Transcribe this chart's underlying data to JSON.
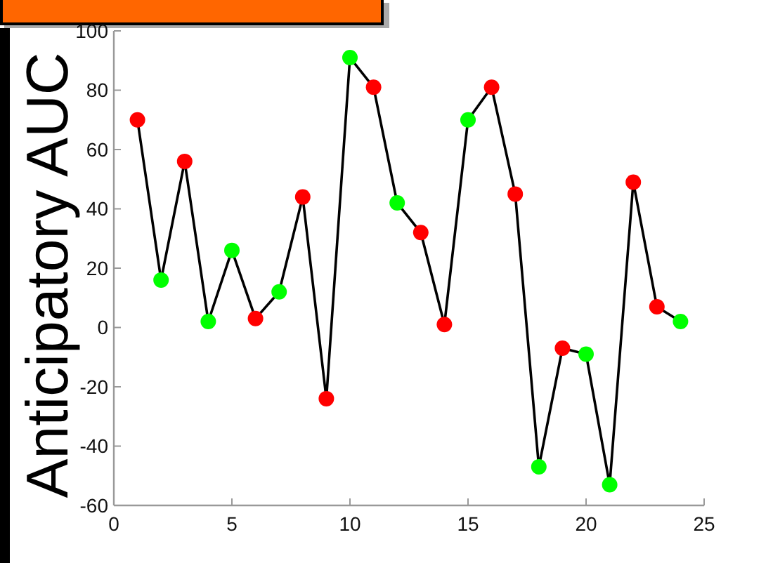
{
  "chart_data": {
    "type": "line",
    "ylabel": "Anticipatory AUC",
    "x": [
      1,
      2,
      3,
      4,
      5,
      6,
      7,
      8,
      9,
      10,
      11,
      12,
      13,
      14,
      15,
      16,
      17,
      18,
      19,
      20,
      21,
      22,
      23,
      24
    ],
    "values": [
      70,
      16,
      56,
      2,
      26,
      3,
      12,
      44,
      -24,
      91,
      81,
      42,
      32,
      1,
      70,
      81,
      45,
      -47,
      -7,
      -9,
      -53,
      49,
      7,
      2
    ],
    "color": "#000000",
    "colors": [
      "#ff0000",
      "#00ff00",
      "#ff0000",
      "#00ff00",
      "#00ff00",
      "#ff0000",
      "#00ff00",
      "#ff0000",
      "#ff0000",
      "#00ff00",
      "#ff0000",
      "#00ff00",
      "#ff0000",
      "#ff0000",
      "#00ff00",
      "#ff0000",
      "#ff0000",
      "#00ff00",
      "#ff0000",
      "#00ff00",
      "#00ff00",
      "#ff0000",
      "#ff0000",
      "#00ff00"
    ],
    "marker": "circle",
    "line_style": "solid",
    "grid": false,
    "xlim": [
      0,
      25
    ],
    "xticks": [
      0,
      5,
      10,
      15,
      20,
      25
    ],
    "ylim": [
      -60,
      100
    ],
    "yticks": [
      -60,
      -40,
      -20,
      0,
      20,
      40,
      60,
      80,
      100
    ]
  }
}
